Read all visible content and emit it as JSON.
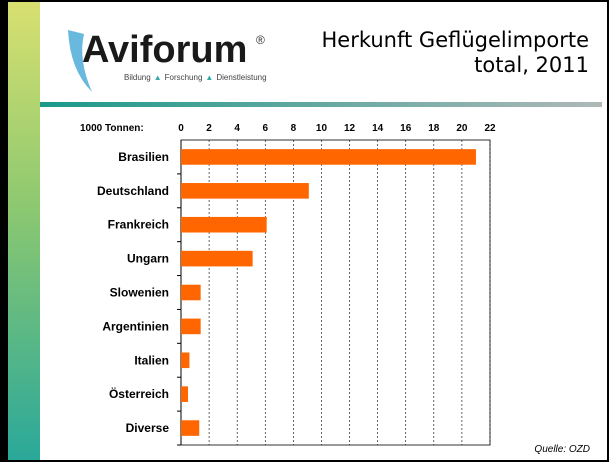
{
  "logo": {
    "name": "Aviforum",
    "mark": "®",
    "tagline": [
      "Bildung",
      "Forschung",
      "Dienstleistung"
    ]
  },
  "title": "Herkunft Geflügelimporte total, 2011",
  "chart_data": {
    "type": "bar",
    "orientation": "horizontal",
    "unit_label": "1000 Tonnen:",
    "categories": [
      "Brasilien",
      "Deutschland",
      "Frankreich",
      "Ungarn",
      "Slowenien",
      "Argentinien",
      "Italien",
      "Österreich",
      "Diverse"
    ],
    "values": [
      21,
      9.1,
      6.1,
      5.1,
      1.4,
      1.4,
      0.6,
      0.5,
      1.3
    ],
    "color": "#ff6600",
    "xlim": [
      0,
      22
    ],
    "xticks": [
      0,
      2,
      4,
      6,
      8,
      10,
      12,
      14,
      16,
      18,
      20,
      22
    ],
    "grid": true,
    "source": "Quelle: OZD"
  }
}
